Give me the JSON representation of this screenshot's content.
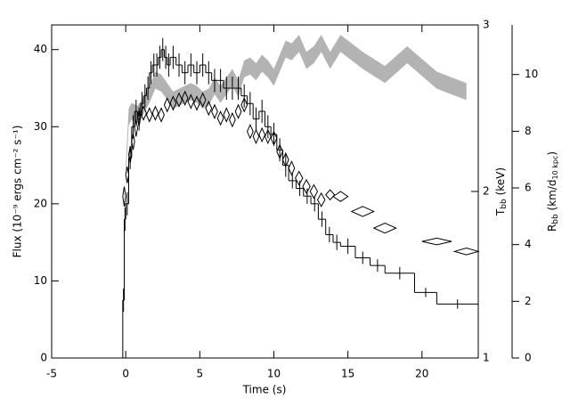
{
  "chart_data": {
    "type": "multi",
    "x_label": "Time (s)",
    "y_label": "Flux (10⁻⁹ ergs cm⁻² s⁻¹)",
    "y2_label": {
      "main": "T",
      "sub": "bb",
      "rest": " (keV)"
    },
    "y3_label": {
      "main": "R",
      "sub": "bb",
      "rest": " (km/d",
      "sub2": "10 kpc",
      "end": ")"
    },
    "xlim": [
      -5,
      23.8
    ],
    "xticks": [
      -5,
      0,
      5,
      10,
      15,
      20
    ],
    "ylim": [
      0,
      43.2
    ],
    "yticks": [
      0,
      10,
      20,
      30,
      40
    ],
    "y2lim": [
      1,
      3
    ],
    "y2ticks": [
      1,
      2,
      3
    ],
    "y3lim": [
      0,
      11.75
    ],
    "y3ticks": [
      0,
      2,
      4,
      6,
      8,
      10
    ],
    "series": [
      {
        "type": "histogram",
        "color": "#000000",
        "bins": [
          -0.2,
          -0.1,
          0,
          0.2,
          0.4,
          0.6,
          0.8,
          1.0,
          1.2,
          1.4,
          1.6,
          1.8,
          2.0,
          2.2,
          2.4,
          2.6,
          2.8,
          3.0,
          3.4,
          3.8,
          4.2,
          4.6,
          5.0,
          5.4,
          5.8,
          6.2,
          6.6,
          7.0,
          7.4,
          7.8,
          8.2,
          8.6,
          9.0,
          9.4,
          9.8,
          10.2,
          10.6,
          11.0,
          11.5,
          12,
          12.5,
          13,
          13.5,
          14,
          14.5,
          15.5,
          16.5,
          17.5,
          19.5,
          21,
          23.8
        ],
        "values": [
          7.5,
          18,
          20,
          26,
          30,
          32,
          31,
          33,
          34,
          35,
          37,
          38,
          38,
          39,
          40,
          39,
          38,
          39,
          38,
          37,
          38,
          37,
          38,
          37,
          36,
          36,
          35,
          35,
          35,
          34,
          33,
          31,
          32,
          30,
          29,
          27,
          25,
          23,
          22,
          21,
          20,
          18,
          16,
          15,
          14.5,
          13,
          12,
          11,
          8.5,
          7
        ],
        "errors": [
          1.5,
          1.5,
          1.5,
          1.5,
          1.5,
          1.5,
          1.5,
          1.5,
          1.5,
          1.5,
          1.5,
          1.5,
          1.5,
          1.5,
          1.5,
          1.5,
          1.5,
          1.5,
          1.5,
          1.5,
          1.5,
          1.5,
          1.5,
          1.5,
          1.5,
          1.5,
          1.5,
          1.5,
          1.5,
          1.5,
          1.5,
          1.5,
          1.5,
          1.5,
          1.5,
          1.5,
          1.5,
          1,
          1,
          1,
          1,
          1,
          1,
          1,
          1,
          0.8,
          0.8,
          0.8,
          0.6,
          0.6
        ]
      },
      {
        "type": "diamonds",
        "axis": "y2",
        "color": "#000000",
        "x": [
          -0.1,
          0.1,
          0.3,
          0.5,
          0.7,
          0.9,
          1.2,
          1.6,
          2.0,
          2.4,
          2.8,
          3.2,
          3.6,
          4.0,
          4.4,
          4.8,
          5.2,
          5.6,
          6.0,
          6.4,
          6.8,
          7.2,
          7.6,
          8.0,
          8.4,
          8.8,
          9.2,
          9.6,
          10.0,
          10.4,
          10.8,
          11.2,
          11.7,
          12.2,
          12.7,
          13.2,
          13.8,
          14.5,
          16.0,
          17.5,
          21.0,
          23.0
        ],
        "values": [
          1.97,
          2.1,
          2.22,
          2.3,
          2.38,
          2.44,
          2.47,
          2.46,
          2.47,
          2.46,
          2.52,
          2.53,
          2.55,
          2.56,
          2.54,
          2.53,
          2.55,
          2.5,
          2.48,
          2.44,
          2.46,
          2.43,
          2.48,
          2.52,
          2.36,
          2.33,
          2.34,
          2.33,
          2.32,
          2.24,
          2.19,
          2.14,
          2.08,
          2.03,
          2.0,
          1.95,
          1.98,
          1.97,
          1.88,
          1.78,
          1.7,
          1.64
        ],
        "xerr": [
          0.1,
          0.1,
          0.1,
          0.1,
          0.1,
          0.1,
          0.2,
          0.2,
          0.2,
          0.2,
          0.2,
          0.2,
          0.2,
          0.2,
          0.2,
          0.2,
          0.2,
          0.2,
          0.2,
          0.2,
          0.2,
          0.2,
          0.2,
          0.2,
          0.2,
          0.2,
          0.2,
          0.2,
          0.2,
          0.2,
          0.2,
          0.2,
          0.25,
          0.25,
          0.25,
          0.25,
          0.3,
          0.5,
          0.75,
          0.75,
          1.0,
          0.8
        ],
        "yerr": [
          0.06,
          0.05,
          0.05,
          0.05,
          0.05,
          0.05,
          0.04,
          0.04,
          0.04,
          0.04,
          0.04,
          0.04,
          0.04,
          0.04,
          0.04,
          0.04,
          0.04,
          0.04,
          0.04,
          0.04,
          0.04,
          0.04,
          0.04,
          0.04,
          0.04,
          0.04,
          0.04,
          0.04,
          0.04,
          0.04,
          0.04,
          0.04,
          0.04,
          0.04,
          0.04,
          0.04,
          0.03,
          0.03,
          0.03,
          0.03,
          0.02,
          0.02
        ]
      },
      {
        "type": "band",
        "axis": "y3",
        "color": "#b3b3b3",
        "x": [
          0,
          0.2,
          0.4,
          0.8,
          1.2,
          1.6,
          2.0,
          2.4,
          2.8,
          3.2,
          3.6,
          4.0,
          4.4,
          4.8,
          5.2,
          5.6,
          6.0,
          6.4,
          6.8,
          7.2,
          7.6,
          8.0,
          8.4,
          8.8,
          9.2,
          9.6,
          10.0,
          10.4,
          10.8,
          11.2,
          11.7,
          12.2,
          12.7,
          13.2,
          13.8,
          14.5,
          16.0,
          17.5,
          19.0,
          21.0,
          23.0
        ],
        "values": [
          6.5,
          8.5,
          8.7,
          8.6,
          8.9,
          9.3,
          9.8,
          9.7,
          9.4,
          9.1,
          9.2,
          9.3,
          9.4,
          9.3,
          9.1,
          9.2,
          9.6,
          9.3,
          9.6,
          9.9,
          9.5,
          10.2,
          10.3,
          10.1,
          10.4,
          10.2,
          9.9,
          10.4,
          10.9,
          10.8,
          11.1,
          10.5,
          10.7,
          11.1,
          10.5,
          11.1,
          10.5,
          10.0,
          10.7,
          9.8,
          9.4
        ],
        "errors": [
          0.3,
          0.3,
          0.3,
          0.3,
          0.3,
          0.3,
          0.3,
          0.3,
          0.3,
          0.3,
          0.3,
          0.3,
          0.3,
          0.3,
          0.3,
          0.3,
          0.3,
          0.3,
          0.3,
          0.3,
          0.3,
          0.3,
          0.3,
          0.3,
          0.3,
          0.3,
          0.3,
          0.3,
          0.3,
          0.3,
          0.3,
          0.3,
          0.3,
          0.3,
          0.3,
          0.3,
          0.3,
          0.3,
          0.3,
          0.3,
          0.3
        ]
      }
    ]
  }
}
